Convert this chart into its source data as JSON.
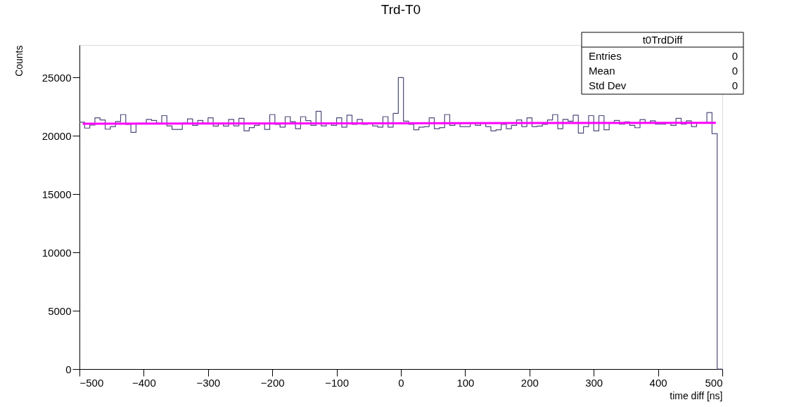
{
  "chart_data": {
    "type": "histogram",
    "title": "Trd-T0",
    "xlabel": "time diff [ns]",
    "ylabel": "Counts",
    "bins": [
      -500,
      -492,
      -484,
      -476,
      -468,
      -460,
      -452,
      -444,
      -436,
      -428,
      -420,
      -412,
      -404,
      -396,
      -388,
      -380,
      -372,
      -364,
      -356,
      -348,
      -340,
      -332,
      -324,
      -316,
      -308,
      -300,
      -292,
      -284,
      -276,
      -268,
      -260,
      -252,
      -244,
      -236,
      -228,
      -220,
      -212,
      -204,
      -196,
      -188,
      -180,
      -172,
      -164,
      -156,
      -148,
      -140,
      -132,
      -124,
      -116,
      -108,
      -100,
      -92,
      -84,
      -76,
      -68,
      -60,
      -52,
      -44,
      -36,
      -28,
      -20,
      -12,
      -4,
      4,
      12,
      20,
      28,
      36,
      44,
      52,
      60,
      68,
      76,
      84,
      92,
      100,
      108,
      116,
      124,
      132,
      140,
      148,
      156,
      164,
      172,
      180,
      188,
      196,
      204,
      212,
      220,
      228,
      236,
      244,
      252,
      260,
      268,
      276,
      284,
      292,
      300,
      308,
      316,
      324,
      332,
      340,
      348,
      356,
      364,
      372,
      380,
      388,
      396,
      404,
      412,
      420,
      428,
      436,
      444,
      452,
      460,
      468,
      476,
      484,
      492,
      500
    ],
    "values": [
      21180,
      20670,
      20930,
      21550,
      21370,
      20580,
      20800,
      21230,
      21830,
      20990,
      20300,
      21080,
      21080,
      21420,
      21330,
      21080,
      21740,
      20860,
      20560,
      20560,
      21120,
      21460,
      20900,
      21330,
      21080,
      21550,
      20840,
      21080,
      20840,
      21420,
      20860,
      21510,
      20430,
      20710,
      20900,
      21050,
      20560,
      21830,
      20990,
      20750,
      21650,
      21220,
      20620,
      21650,
      21310,
      20900,
      22110,
      20860,
      21080,
      20900,
      21550,
      20750,
      21780,
      20990,
      21420,
      20990,
      21080,
      20860,
      20750,
      21650,
      20750,
      21930,
      25000,
      21270,
      20990,
      20520,
      20750,
      20800,
      21550,
      20620,
      20710,
      21830,
      20900,
      21080,
      20800,
      20800,
      21080,
      20900,
      21080,
      20800,
      20430,
      20520,
      20990,
      20620,
      20900,
      21370,
      20800,
      21550,
      20800,
      20840,
      20990,
      21370,
      21830,
      20620,
      21420,
      21270,
      21780,
      20240,
      20800,
      21740,
      20430,
      21740,
      20520,
      21080,
      21330,
      21000,
      21200,
      20900,
      20700,
      21400,
      21100,
      21300,
      21000,
      21000,
      21100,
      20900,
      21500,
      21000,
      21300,
      20800,
      21100,
      21100,
      22000,
      20200,
      0
    ],
    "color": "#4b4b7a",
    "series": [
      {
        "type": "line",
        "color": "#ff00ff",
        "x": [
          -495,
          490
        ],
        "values": [
          21050,
          21120
        ]
      }
    ],
    "xlim": [
      -500,
      500
    ],
    "xticks": [
      -500,
      -400,
      -300,
      -200,
      -100,
      0,
      100,
      200,
      300,
      400,
      500
    ],
    "ylim": [
      0,
      27800
    ],
    "yticks": [
      0,
      5000,
      10000,
      15000,
      20000,
      25000
    ],
    "grid": false,
    "annotations": [
      "t0TrdDiff",
      "Entries 0",
      "Mean 0",
      "Std Dev 0"
    ]
  }
}
